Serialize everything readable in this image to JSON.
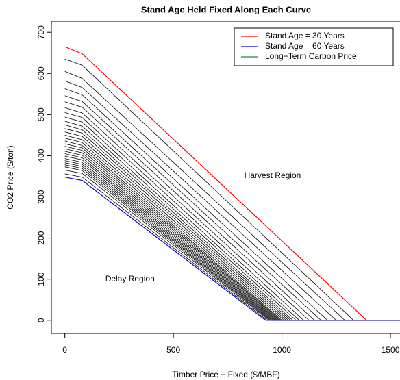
{
  "chart_data": {
    "type": "line",
    "title": "Stand Age Held Fixed Along Each Curve",
    "x_label": "Timber Price − Fixed ($/MBF)",
    "y_label": "CO2 Price ($/ton)",
    "xlim": [
      -62,
      1544
    ],
    "ylim": [
      -32,
      727
    ],
    "xticks": [
      0,
      500,
      1000,
      1500
    ],
    "yticks": [
      0,
      100,
      200,
      300,
      400,
      500,
      600,
      700
    ],
    "legend": "top-right",
    "annotations": [
      {
        "text": "Harvest Region",
        "x": 957,
        "y": 351
      },
      {
        "text": "Delay Region",
        "x": 300,
        "y": 100
      }
    ],
    "hlines": [
      {
        "name": "Long−Term Carbon Price",
        "color": "#228b22",
        "value": 32
      }
    ],
    "series": [
      {
        "name": "Stand Age = 30 Years",
        "color": "red",
        "x": [
          0,
          80,
          1390,
          1550
        ],
        "values": [
          665,
          648,
          0,
          0
        ]
      },
      {
        "color": "black",
        "x": [
          0,
          80,
          1330,
          1550
        ],
        "values": [
          635,
          620,
          0,
          0
        ]
      },
      {
        "color": "black",
        "x": [
          0,
          80,
          1290,
          1550
        ],
        "values": [
          605,
          588,
          0,
          0
        ]
      },
      {
        "color": "black",
        "x": [
          0,
          80,
          1250,
          1550
        ],
        "values": [
          582,
          566,
          0,
          0
        ]
      },
      {
        "color": "black",
        "x": [
          0,
          80,
          1210,
          1550
        ],
        "values": [
          563,
          548,
          0,
          0
        ]
      },
      {
        "color": "black",
        "x": [
          0,
          80,
          1180,
          1550
        ],
        "values": [
          546,
          532,
          0,
          0
        ]
      },
      {
        "color": "black",
        "x": [
          0,
          80,
          1150,
          1550
        ],
        "values": [
          531,
          518,
          0,
          0
        ]
      },
      {
        "color": "black",
        "x": [
          0,
          80,
          1125,
          1550
        ],
        "values": [
          517,
          504,
          0,
          0
        ]
      },
      {
        "color": "black",
        "x": [
          0,
          80,
          1100,
          1550
        ],
        "values": [
          505,
          493,
          0,
          0
        ]
      },
      {
        "color": "black",
        "x": [
          0,
          80,
          1080,
          1550
        ],
        "values": [
          494,
          482,
          0,
          0
        ]
      },
      {
        "color": "black",
        "x": [
          0,
          80,
          1065,
          1550
        ],
        "values": [
          484,
          472,
          0,
          0
        ]
      },
      {
        "color": "black",
        "x": [
          0,
          80,
          1050,
          1550
        ],
        "values": [
          475,
          463,
          0,
          0
        ]
      },
      {
        "color": "black",
        "x": [
          0,
          80,
          1040,
          1550
        ],
        "values": [
          466,
          455,
          0,
          0
        ]
      },
      {
        "color": "black",
        "x": [
          0,
          80,
          1030,
          1550
        ],
        "values": [
          458,
          447,
          0,
          0
        ]
      },
      {
        "color": "black",
        "x": [
          0,
          80,
          1020,
          1550
        ],
        "values": [
          450,
          439,
          0,
          0
        ]
      },
      {
        "color": "black",
        "x": [
          0,
          80,
          1010,
          1550
        ],
        "values": [
          443,
          432,
          0,
          0
        ]
      },
      {
        "color": "black",
        "x": [
          0,
          80,
          1000,
          1550
        ],
        "values": [
          436,
          425,
          0,
          0
        ]
      },
      {
        "color": "black",
        "x": [
          0,
          80,
          995,
          1550
        ],
        "values": [
          429,
          419,
          0,
          0
        ]
      },
      {
        "color": "black",
        "x": [
          0,
          80,
          990,
          1550
        ],
        "values": [
          423,
          413,
          0,
          0
        ]
      },
      {
        "color": "black",
        "x": [
          0,
          80,
          985,
          1550
        ],
        "values": [
          417,
          407,
          0,
          0
        ]
      },
      {
        "color": "black",
        "x": [
          0,
          80,
          980,
          1550
        ],
        "values": [
          411,
          401,
          0,
          0
        ]
      },
      {
        "color": "black",
        "x": [
          0,
          80,
          975,
          1550
        ],
        "values": [
          405,
          395,
          0,
          0
        ]
      },
      {
        "color": "black",
        "x": [
          0,
          80,
          970,
          1550
        ],
        "values": [
          399,
          390,
          0,
          0
        ]
      },
      {
        "color": "black",
        "x": [
          0,
          80,
          965,
          1550
        ],
        "values": [
          393,
          384,
          0,
          0
        ]
      },
      {
        "color": "black",
        "x": [
          0,
          80,
          960,
          1550
        ],
        "values": [
          388,
          379,
          0,
          0
        ]
      },
      {
        "color": "black",
        "x": [
          0,
          80,
          955,
          1550
        ],
        "values": [
          383,
          374,
          0,
          0
        ]
      },
      {
        "color": "black",
        "x": [
          0,
          80,
          950,
          1550
        ],
        "values": [
          378,
          369,
          0,
          0
        ]
      },
      {
        "color": "black",
        "x": [
          0,
          80,
          945,
          1550
        ],
        "values": [
          373,
          364,
          0,
          0
        ]
      },
      {
        "color": "black",
        "x": [
          0,
          80,
          940,
          1550
        ],
        "values": [
          365,
          357,
          0,
          0
        ]
      },
      {
        "color": "black",
        "x": [
          0,
          80,
          932,
          1550
        ],
        "values": [
          356,
          348,
          0,
          0
        ]
      },
      {
        "name": "Stand Age = 60 Years",
        "color": "#0000cd",
        "x": [
          0,
          80,
          925,
          1550
        ],
        "values": [
          348,
          340,
          0,
          0
        ]
      }
    ]
  }
}
